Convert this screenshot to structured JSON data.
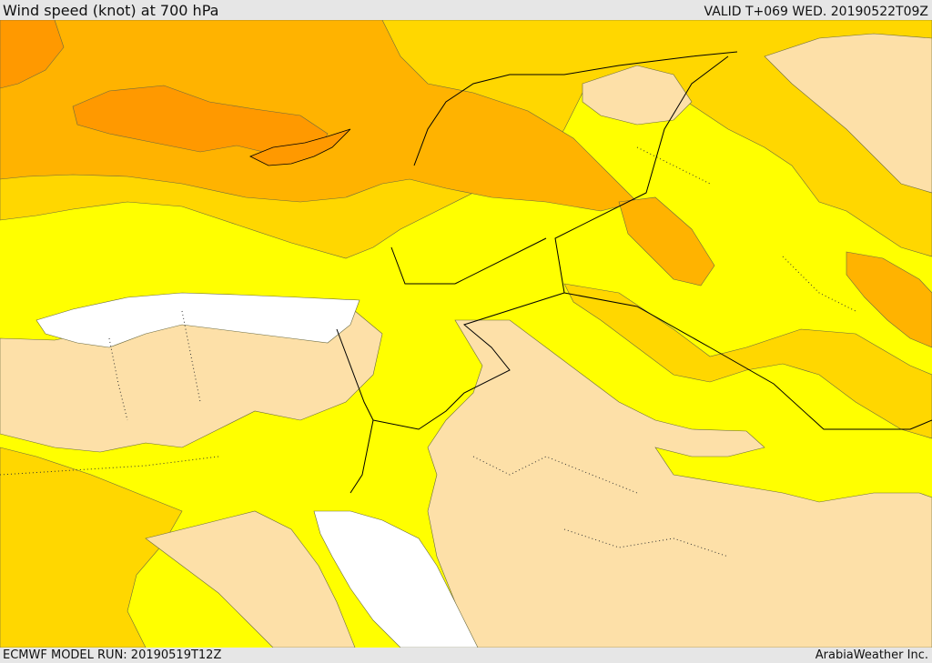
{
  "header": {
    "title": "Wind speed (knot) at 700 hPa",
    "valid": "VALID T+069 WED. 20190522T09Z"
  },
  "footer": {
    "model_run": "ECMWF MODEL RUN: 20190519T12Z",
    "credit": "ArabiaWeather Inc."
  },
  "colors": {
    "calm_tan": "#fde0a8",
    "yellow": "#ffff00",
    "gold": "#ffd700",
    "orange_light": "#ffb300",
    "orange": "#ff9900",
    "sea_white": "#ffffff",
    "border": "#000000"
  }
}
